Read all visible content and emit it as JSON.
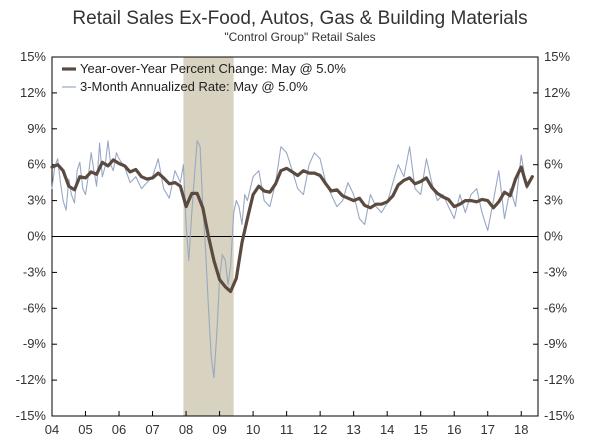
{
  "chart_data": {
    "type": "line",
    "title": "Retail Sales Ex-Food, Autos, Gas & Building Materials",
    "subtitle": "\"Control Group\" Retail Sales",
    "xlabel": "",
    "ylabel": "",
    "x_ticks": [
      "04",
      "05",
      "06",
      "07",
      "08",
      "09",
      "10",
      "11",
      "12",
      "13",
      "14",
      "15",
      "16",
      "17",
      "18"
    ],
    "x_range": [
      2004.0,
      2018.5
    ],
    "y_ticks": [
      "15%",
      "12%",
      "9%",
      "6%",
      "3%",
      "0%",
      "-3%",
      "-6%",
      "-9%",
      "-12%",
      "-15%"
    ],
    "ylim": [
      -15,
      15
    ],
    "grid": false,
    "zero_line": true,
    "legend_position": "top-left",
    "shaded_regions": [
      {
        "start": 2007.92,
        "end": 2009.42,
        "label": "recession"
      }
    ],
    "series": [
      {
        "name": "Year-over-Year Percent Change: May @ 5.0%",
        "style": "thick",
        "color": "#5b4a40",
        "x": [
          2004.0,
          2004.17,
          2004.33,
          2004.5,
          2004.67,
          2004.83,
          2005.0,
          2005.17,
          2005.33,
          2005.5,
          2005.67,
          2005.83,
          2006.0,
          2006.17,
          2006.33,
          2006.5,
          2006.67,
          2006.83,
          2007.0,
          2007.17,
          2007.33,
          2007.5,
          2007.67,
          2007.83,
          2008.0,
          2008.17,
          2008.33,
          2008.5,
          2008.67,
          2008.83,
          2009.0,
          2009.17,
          2009.33,
          2009.5,
          2009.67,
          2009.83,
          2010.0,
          2010.17,
          2010.33,
          2010.5,
          2010.67,
          2010.83,
          2011.0,
          2011.17,
          2011.33,
          2011.5,
          2011.67,
          2011.83,
          2012.0,
          2012.17,
          2012.33,
          2012.5,
          2012.67,
          2012.83,
          2013.0,
          2013.17,
          2013.33,
          2013.5,
          2013.67,
          2013.83,
          2014.0,
          2014.17,
          2014.33,
          2014.5,
          2014.67,
          2014.83,
          2015.0,
          2015.17,
          2015.33,
          2015.5,
          2015.67,
          2015.83,
          2016.0,
          2016.17,
          2016.33,
          2016.5,
          2016.67,
          2016.83,
          2017.0,
          2017.17,
          2017.33,
          2017.5,
          2017.67,
          2017.83,
          2018.0,
          2018.17,
          2018.33
        ],
        "values": [
          5.8,
          6.0,
          5.5,
          4.2,
          3.9,
          5.0,
          4.9,
          5.4,
          5.2,
          6.2,
          5.9,
          6.4,
          6.1,
          5.9,
          5.4,
          5.6,
          5.0,
          4.8,
          4.9,
          5.3,
          4.9,
          4.4,
          4.5,
          4.2,
          2.5,
          3.6,
          3.6,
          2.4,
          0.0,
          -2.0,
          -3.6,
          -4.2,
          -4.6,
          -3.5,
          -0.5,
          1.5,
          3.5,
          4.2,
          3.8,
          3.7,
          4.4,
          5.5,
          5.7,
          5.4,
          5.1,
          5.5,
          5.3,
          5.3,
          5.1,
          4.4,
          3.8,
          3.9,
          3.4,
          3.2,
          3.0,
          3.2,
          2.6,
          2.4,
          2.7,
          2.7,
          2.9,
          3.4,
          4.3,
          4.7,
          4.9,
          4.4,
          4.6,
          4.9,
          4.1,
          3.6,
          3.3,
          3.1,
          2.5,
          2.7,
          3.0,
          3.0,
          2.9,
          3.1,
          3.0,
          2.4,
          2.9,
          3.7,
          3.4,
          4.8,
          5.8,
          4.2,
          5.0
        ]
      },
      {
        "name": "3-Month Annualized Rate: May @ 5.0%",
        "style": "thin",
        "color": "#98a8c4",
        "x": [
          2004.0,
          2004.08,
          2004.17,
          2004.25,
          2004.33,
          2004.42,
          2004.5,
          2004.58,
          2004.67,
          2004.75,
          2004.83,
          2004.92,
          2005.0,
          2005.08,
          2005.17,
          2005.25,
          2005.33,
          2005.42,
          2005.5,
          2005.58,
          2005.67,
          2005.75,
          2005.83,
          2005.92,
          2006.0,
          2006.17,
          2006.33,
          2006.5,
          2006.67,
          2006.83,
          2007.0,
          2007.17,
          2007.33,
          2007.5,
          2007.67,
          2007.83,
          2007.92,
          2008.0,
          2008.08,
          2008.17,
          2008.25,
          2008.33,
          2008.42,
          2008.5,
          2008.58,
          2008.67,
          2008.75,
          2008.83,
          2008.92,
          2009.0,
          2009.08,
          2009.17,
          2009.25,
          2009.33,
          2009.42,
          2009.5,
          2009.58,
          2009.67,
          2009.75,
          2009.83,
          2010.0,
          2010.17,
          2010.33,
          2010.5,
          2010.67,
          2010.83,
          2011.0,
          2011.17,
          2011.33,
          2011.5,
          2011.67,
          2011.83,
          2012.0,
          2012.17,
          2012.33,
          2012.5,
          2012.67,
          2012.83,
          2013.0,
          2013.17,
          2013.33,
          2013.5,
          2013.67,
          2013.83,
          2014.0,
          2014.17,
          2014.33,
          2014.5,
          2014.67,
          2014.83,
          2015.0,
          2015.17,
          2015.33,
          2015.5,
          2015.67,
          2015.83,
          2016.0,
          2016.17,
          2016.33,
          2016.5,
          2016.67,
          2016.83,
          2017.0,
          2017.17,
          2017.33,
          2017.5,
          2017.67,
          2017.83,
          2018.0,
          2018.17,
          2018.33
        ],
        "values": [
          4.0,
          5.8,
          6.5,
          4.5,
          3.0,
          2.2,
          4.8,
          3.5,
          2.8,
          5.5,
          6.2,
          4.0,
          3.5,
          5.0,
          7.0,
          5.5,
          4.2,
          7.8,
          5.0,
          5.8,
          8.0,
          6.0,
          5.5,
          7.0,
          6.5,
          5.8,
          4.5,
          5.0,
          4.0,
          4.5,
          5.0,
          6.5,
          4.0,
          3.2,
          5.5,
          4.5,
          6.0,
          1.0,
          -2.0,
          2.0,
          5.0,
          8.0,
          7.5,
          2.5,
          -1.0,
          -6.0,
          -10.0,
          -11.8,
          -8.0,
          -3.5,
          -1.5,
          -2.0,
          -4.0,
          -2.5,
          2.0,
          3.0,
          2.5,
          1.0,
          3.5,
          3.0,
          5.0,
          5.5,
          3.0,
          2.5,
          4.5,
          7.5,
          7.0,
          5.5,
          4.0,
          3.5,
          6.0,
          7.0,
          6.5,
          4.5,
          3.5,
          2.5,
          3.0,
          4.5,
          3.5,
          1.5,
          1.0,
          3.5,
          2.5,
          2.0,
          2.8,
          4.5,
          6.0,
          5.0,
          7.5,
          4.0,
          3.5,
          6.5,
          4.5,
          3.0,
          3.5,
          2.5,
          1.5,
          3.5,
          2.0,
          3.5,
          4.0,
          2.0,
          0.5,
          3.0,
          5.5,
          1.5,
          4.0,
          2.5,
          6.8,
          4.0,
          5.0
        ]
      }
    ]
  }
}
